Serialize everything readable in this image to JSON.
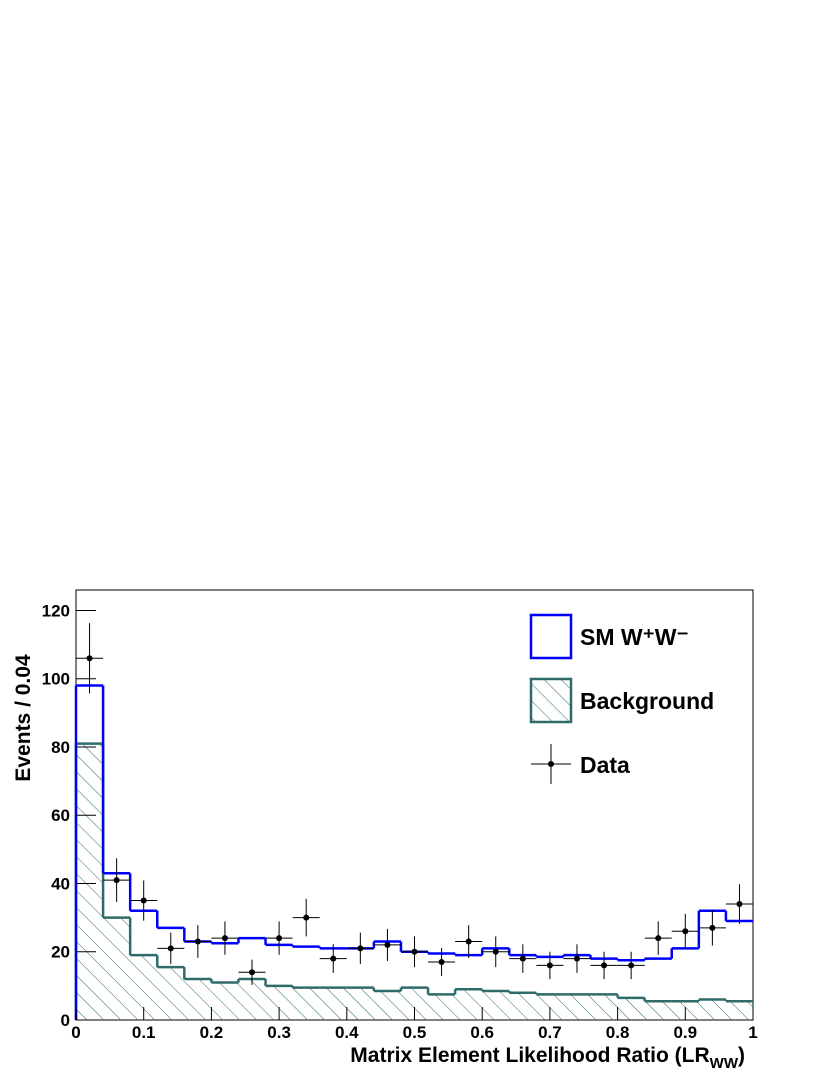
{
  "chart_data": {
    "type": "histogram",
    "xlabel": {
      "main": "Matrix Element Likelihood Ratio (LR",
      "sub": "WW",
      "end": ")"
    },
    "ylabel": "Events / 0.04",
    "bins": [
      0,
      0.04,
      0.08,
      0.12,
      0.16,
      0.2,
      0.24,
      0.28,
      0.32,
      0.36,
      0.4,
      0.44,
      0.48,
      0.52,
      0.56,
      0.6,
      0.64,
      0.68,
      0.72,
      0.76,
      0.8,
      0.84,
      0.88,
      0.92,
      0.96,
      1
    ],
    "xlim": [
      0,
      1
    ],
    "ylim": [
      0,
      126
    ],
    "xticks": [
      0,
      0.1,
      0.2,
      0.3,
      0.4,
      0.5,
      0.6,
      0.7,
      0.8,
      0.9,
      1
    ],
    "yticks": [
      0,
      20,
      40,
      60,
      80,
      100,
      120
    ],
    "legend": "top-right",
    "series": [
      {
        "name": "SM W⁺W⁻",
        "color": "#0000ff",
        "style": "step",
        "values": [
          98,
          43,
          32,
          27,
          23,
          22.5,
          24,
          22,
          21.5,
          21,
          21,
          23,
          20,
          19.5,
          19,
          21,
          19,
          18.5,
          19,
          18,
          17.5,
          18,
          21,
          32,
          29
        ]
      },
      {
        "name": "Background",
        "color": "#2f6b6b",
        "style": "hatch",
        "values": [
          81,
          30,
          19,
          15.5,
          12,
          11,
          12,
          10,
          9.5,
          9.5,
          9.5,
          8.5,
          9.5,
          7.5,
          9,
          8.5,
          8,
          7.5,
          7.5,
          7.5,
          6.5,
          5.5,
          5.5,
          6,
          5.5
        ]
      },
      {
        "name": "Data",
        "color": "#000000",
        "style": "points",
        "values": [
          106,
          41,
          35,
          21,
          23,
          24,
          14,
          24,
          30,
          18,
          21,
          22,
          20,
          17,
          23,
          20,
          18,
          16,
          18,
          16,
          16,
          24,
          26,
          27,
          34
        ],
        "errors": [
          10.3,
          6.4,
          5.9,
          4.6,
          4.8,
          4.9,
          3.7,
          4.9,
          5.5,
          4.2,
          4.6,
          4.7,
          4.5,
          4.1,
          4.8,
          4.5,
          4.2,
          4,
          4.2,
          4,
          4,
          4.9,
          5.1,
          5.2,
          5.8
        ]
      }
    ]
  }
}
